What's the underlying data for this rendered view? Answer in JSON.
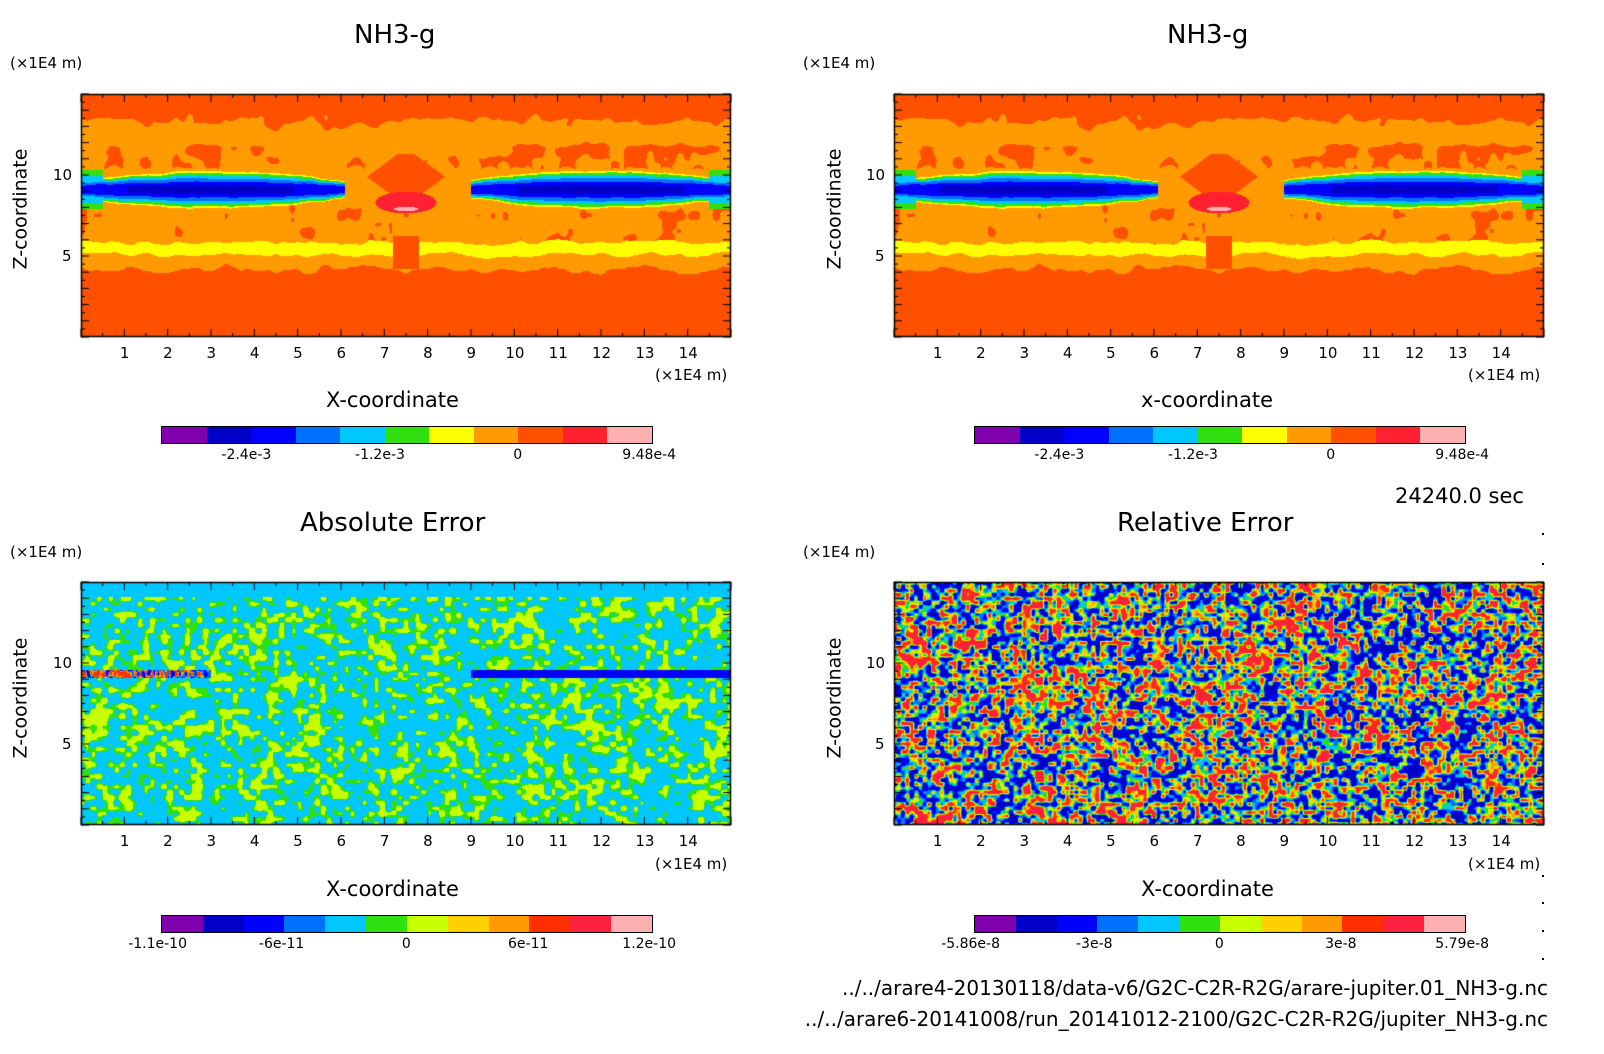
{
  "chart_data": [
    {
      "type": "heatmap",
      "title": "NH3-g",
      "xlabel": "X-coordinate",
      "ylabel": "Z-coordinate",
      "x_units": "(×1E4 m)",
      "y_units": "(×1E4 m)",
      "xlim": [
        0,
        15
      ],
      "ylim": [
        0,
        15
      ],
      "xticks": [
        "1",
        "2",
        "3",
        "4",
        "5",
        "6",
        "7",
        "8",
        "9",
        "10",
        "11",
        "12",
        "13",
        "14"
      ],
      "yticks": [
        "5",
        "10"
      ],
      "colorbar": {
        "colors": [
          "#8000b0",
          "#0000c8",
          "#0000ff",
          "#0070ff",
          "#00c8ff",
          "#30e010",
          "#ffff00",
          "#ff9b00",
          "#ff5000",
          "#ff2030",
          "#ffb0b0"
        ],
        "labels": [
          "-2.4e-3",
          "-1.2e-3",
          "0",
          "9.48e-4"
        ]
      }
    },
    {
      "type": "heatmap",
      "title": "NH3-g",
      "xlabel": "x-coordinate",
      "ylabel": "Z-coordinate",
      "x_units": "(×1E4 m)",
      "y_units": "(×1E4 m)",
      "xlim": [
        0,
        15
      ],
      "ylim": [
        0,
        15
      ],
      "xticks": [
        "1",
        "2",
        "3",
        "4",
        "5",
        "6",
        "7",
        "8",
        "9",
        "10",
        "11",
        "12",
        "13",
        "14"
      ],
      "yticks": [
        "5",
        "10"
      ],
      "colorbar": {
        "colors": [
          "#8000b0",
          "#0000c8",
          "#0000ff",
          "#0070ff",
          "#00c8ff",
          "#30e010",
          "#ffff00",
          "#ff9b00",
          "#ff5000",
          "#ff2030",
          "#ffb0b0"
        ],
        "labels": [
          "-2.4e-3",
          "-1.2e-3",
          "0",
          "9.48e-4"
        ]
      }
    },
    {
      "type": "heatmap",
      "title": "Absolute Error",
      "xlabel": "X-coordinate",
      "ylabel": "Z-coordinate",
      "x_units": "(×1E4 m)",
      "y_units": "(×1E4 m)",
      "xlim": [
        0,
        15
      ],
      "ylim": [
        0,
        15
      ],
      "xticks": [
        "1",
        "2",
        "3",
        "4",
        "5",
        "6",
        "7",
        "8",
        "9",
        "10",
        "11",
        "12",
        "13",
        "14"
      ],
      "yticks": [
        "5",
        "10"
      ],
      "colorbar": {
        "colors": [
          "#8000b0",
          "#0000c8",
          "#0000ff",
          "#0070ff",
          "#00c8ff",
          "#30e010",
          "#c8ff00",
          "#ffd000",
          "#ff9b00",
          "#ff3000",
          "#ff2040",
          "#ffb0b0"
        ],
        "labels": [
          "-1.1e-10",
          "-6e-11",
          "0",
          "6e-11",
          "1.2e-10"
        ]
      }
    },
    {
      "type": "heatmap",
      "title": "Relative Error",
      "xlabel": "X-coordinate",
      "ylabel": "Z-coordinate",
      "x_units": "(×1E4 m)",
      "y_units": "(×1E4 m)",
      "xlim": [
        0,
        15
      ],
      "ylim": [
        0,
        15
      ],
      "xticks": [
        "1",
        "2",
        "3",
        "4",
        "5",
        "6",
        "7",
        "8",
        "9",
        "10",
        "11",
        "12",
        "13",
        "14"
      ],
      "yticks": [
        "5",
        "10"
      ],
      "colorbar": {
        "colors": [
          "#8000b0",
          "#0000c8",
          "#0000ff",
          "#0070ff",
          "#00c8ff",
          "#30e010",
          "#c8ff00",
          "#ffd000",
          "#ff9b00",
          "#ff3000",
          "#ff2040",
          "#ffb0b0"
        ],
        "labels": [
          "-5.86e-8",
          "-3e-8",
          "0",
          "3e-8",
          "5.79e-8"
        ]
      }
    }
  ],
  "time_label": "24240.0 sec",
  "file_paths": [
    "../../arare4-20130118/data-v6/G2C-C2R-R2G/arare-jupiter.01_NH3-g.nc",
    "../../arare6-20141008/run_20141012-2100/G2C-C2R-R2G/jupiter_NH3-g.nc"
  ]
}
